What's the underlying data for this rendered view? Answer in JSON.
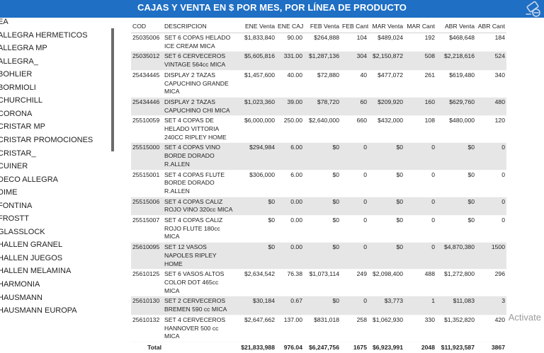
{
  "header": {
    "title": "CAJAS Y VENTA EN $ POR MES, POR LÍNEA DE PRODUCTO",
    "icon": "eraser-icon",
    "accent_color": "#1f6fc4"
  },
  "slicer": {
    "items": [
      "EA",
      "ALLEGRA HERMETICOS",
      "ALLEGRA MP",
      "ALLEGRA_",
      "BOHLIER",
      "BORMIOLI",
      "CHURCHILL",
      "CORONA",
      "CRISTAR MP",
      "CRISTAR PROMOCIONES",
      "CRISTAR_",
      "CUINER",
      "DECO ALLEGRA",
      "DIME",
      "FONTINA",
      "FROSTT",
      "GLASSLOCK",
      "HALLEN GRANEL",
      "HALLEN JUEGOS",
      "HALLEN MELAMINA",
      "HARMONIA",
      "HAUSMANN",
      "HAUSMANN EUROPA"
    ]
  },
  "table": {
    "columns": [
      "COD",
      "DESCRIPCION",
      "ENE Venta",
      "ENE CAJ",
      "FEB Venta",
      "FEB Cant",
      "MAR Venta",
      "MAR Cant",
      "ABR Venta",
      "ABR Cant"
    ],
    "rows": [
      [
        "25035006",
        "SET 6 COPAS HELADO ICE CREAM MICA",
        "$1,833,840",
        "90.00",
        "$264,888",
        "104",
        "$489,024",
        "192",
        "$468,648",
        "184"
      ],
      [
        "25035012",
        "SET 6 CERVECEROS VINTAGE 564cc MICA",
        "$5,605,816",
        "331.00",
        "$1,287,136",
        "304",
        "$2,150,872",
        "508",
        "$2,218,616",
        "524"
      ],
      [
        "25434445",
        "DISPLAY 2 TAZAS CAPUCHINO GRANDE MICA",
        "$1,457,600",
        "40.00",
        "$72,880",
        "40",
        "$477,072",
        "261",
        "$619,480",
        "340"
      ],
      [
        "25434446",
        "DISPLAY 2 TAZAS CAPUCHINO CHI MICA",
        "$1,023,360",
        "39.00",
        "$78,720",
        "60",
        "$209,920",
        "160",
        "$629,760",
        "480"
      ],
      [
        "25510059",
        "SET 4 COPAS DE HELADO VITTORIA 240CC RIPLEY HOME",
        "$6,000,000",
        "250.00",
        "$2,640,000",
        "660",
        "$432,000",
        "108",
        "$480,000",
        "120"
      ],
      [
        "25515000",
        "SET 4 COPAS VINO BORDE DORADO R.ALLEN",
        "$294,984",
        "6.00",
        "$0",
        "0",
        "$0",
        "0",
        "$0",
        "0"
      ],
      [
        "25515001",
        "SET 4 COPAS FLUTE BORDE DORADO R.ALLEN",
        "$306,000",
        "6.00",
        "$0",
        "0",
        "$0",
        "0",
        "$0",
        "0"
      ],
      [
        "25515006",
        "SET 4 COPAS CALIZ ROJO VINO 320cc MICA",
        "$0",
        "0.00",
        "$0",
        "0",
        "$0",
        "0",
        "$0",
        "0"
      ],
      [
        "25515007",
        "SET 4 COPAS CALIZ ROJO FLUTE 180cc MICA",
        "$0",
        "0.00",
        "$0",
        "0",
        "$0",
        "0",
        "$0",
        "0"
      ],
      [
        "25610095",
        "SET 12 VASOS NAPOLES RIPLEY HOME",
        "$0",
        "0.00",
        "$0",
        "0",
        "$0",
        "0",
        "$4,870,380",
        "1500"
      ],
      [
        "25610125",
        "SET 6 VASOS ALTOS COLOR DOT 465cc MICA",
        "$2,634,542",
        "76.38",
        "$1,073,114",
        "249",
        "$2,098,400",
        "488",
        "$1,272,800",
        "296"
      ],
      [
        "25610130",
        "SET 2 CERVECEROS BREMEN 590 cc MICA",
        "$30,184",
        "0.67",
        "$0",
        "0",
        "$3,773",
        "1",
        "$11,083",
        "3"
      ],
      [
        "25610132",
        "SET 4 CERVECEROS HANNOVER 500 cc  MICA",
        "$2,647,662",
        "137.00",
        "$831,018",
        "258",
        "$1,062,930",
        "330",
        "$1,352,820",
        "420"
      ]
    ],
    "total": [
      "Total",
      "",
      "$21,833,988",
      "976.04",
      "$6,247,756",
      "1675",
      "$6,923,991",
      "2048",
      "$11,923,587",
      "3867"
    ]
  },
  "watermark": "Activate"
}
